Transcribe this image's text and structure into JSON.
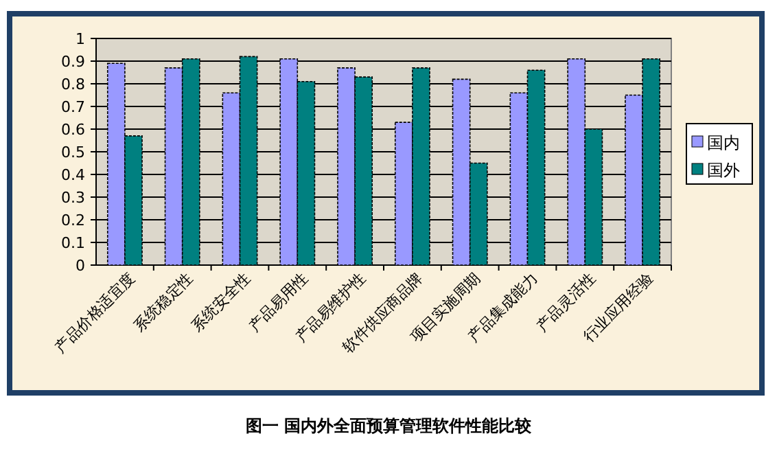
{
  "chart_data": {
    "type": "bar",
    "title": "图一 国内外全面预算管理软件性能比较",
    "categories": [
      "产品价格适宜度",
      "系统稳定性",
      "系统安全性",
      "产品易用性",
      "产品易维护性",
      "软件供应商品牌",
      "项目实施周期",
      "产品集成能力",
      "产品灵活性",
      "行业应用经验"
    ],
    "series": [
      {
        "name": "国内",
        "color": "#9999ff",
        "values": [
          0.89,
          0.87,
          0.76,
          0.91,
          0.87,
          0.63,
          0.82,
          0.76,
          0.91,
          0.75
        ]
      },
      {
        "name": "国外",
        "color": "#008080",
        "values": [
          0.57,
          0.91,
          0.92,
          0.81,
          0.83,
          0.87,
          0.45,
          0.86,
          0.6,
          0.91
        ]
      }
    ],
    "ylim": [
      0,
      1
    ],
    "yticks": [
      0,
      0.1,
      0.2,
      0.3,
      0.4,
      0.5,
      0.6,
      0.7,
      0.8,
      0.9,
      1
    ],
    "grid": "y",
    "legend": "right"
  }
}
